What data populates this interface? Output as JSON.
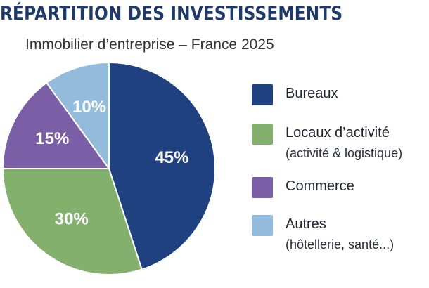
{
  "header": {
    "title": "RÉPARTITION DES INVESTISSEMENTS",
    "subtitle": "Immobilier d’entreprise – France 2025"
  },
  "chart_data": {
    "type": "pie",
    "title": "RÉPARTITION DES INVESTISSEMENTS",
    "subtitle": "Immobilier d’entreprise – France 2025",
    "slices": [
      {
        "name": "Bureaux",
        "note": "",
        "value": 45,
        "label": "45%",
        "color": "#1f4180"
      },
      {
        "name": "Locaux d’activité",
        "note": "(activité & logistique)",
        "value": 30,
        "label": "30%",
        "color": "#84b06e"
      },
      {
        "name": "Commerce",
        "note": "",
        "value": 15,
        "label": "15%",
        "color": "#7b5fa6"
      },
      {
        "name": "Autres",
        "note": "(hôtellerie, santé...)",
        "value": 10,
        "label": "10%",
        "color": "#93bcdc"
      }
    ],
    "legend_position": "right"
  }
}
